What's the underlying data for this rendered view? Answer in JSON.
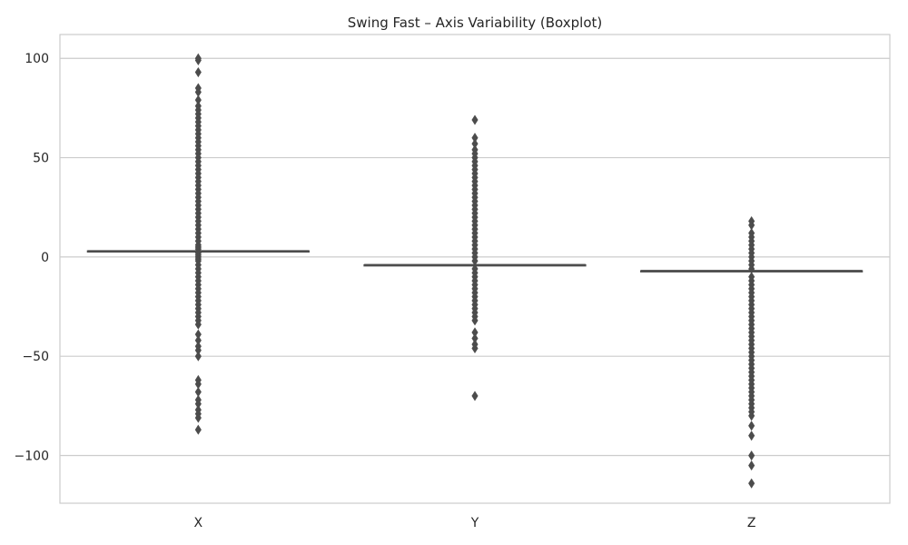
{
  "chart_data": {
    "type": "boxplot",
    "title": "Swing Fast – Axis Variability (Boxplot)",
    "xlabel": "",
    "ylabel": "",
    "categories": [
      "X",
      "Y",
      "Z"
    ],
    "ylim": [
      -124,
      112
    ],
    "yticks": [
      100,
      50,
      0,
      -50,
      -100
    ],
    "ytick_labels": [
      "100",
      "50",
      "0",
      "−50",
      "−100"
    ],
    "grid": "horizontal",
    "box_color": "#4c4c4c",
    "grid_color": "#cccccc",
    "series": [
      {
        "category": "X",
        "median": 3,
        "q1": 3,
        "q3": 3,
        "whisker_low": 3,
        "whisker_high": 3,
        "outliers": [
          100,
          99,
          93,
          85,
          83,
          79,
          76,
          74,
          72,
          70,
          68,
          66,
          64,
          62,
          60,
          58,
          56,
          54,
          52,
          50,
          48,
          46,
          44,
          42,
          40,
          38,
          36,
          34,
          32,
          30,
          28,
          26,
          24,
          22,
          20,
          18,
          16,
          14,
          12,
          10,
          8,
          6,
          5,
          4,
          2,
          1,
          0,
          -1,
          -2,
          -4,
          -6,
          -8,
          -10,
          -12,
          -14,
          -16,
          -18,
          -20,
          -22,
          -24,
          -26,
          -28,
          -30,
          -32,
          -34,
          -39,
          -42,
          -45,
          -47,
          -50,
          -62,
          -64,
          -68,
          -72,
          -74,
          -77,
          -79,
          -81,
          -87
        ]
      },
      {
        "category": "Y",
        "median": -4,
        "q1": -4,
        "q3": -4,
        "whisker_low": -4,
        "whisker_high": -4,
        "outliers": [
          69,
          60,
          57,
          54,
          52,
          50,
          48,
          46,
          44,
          42,
          40,
          38,
          36,
          34,
          32,
          30,
          28,
          26,
          24,
          22,
          20,
          18,
          16,
          14,
          12,
          10,
          8,
          6,
          4,
          2,
          0,
          -2,
          -6,
          -8,
          -10,
          -12,
          -14,
          -16,
          -18,
          -20,
          -22,
          -24,
          -26,
          -28,
          -30,
          -32,
          -38,
          -41,
          -44,
          -46,
          -70
        ]
      },
      {
        "category": "Z",
        "median": -7,
        "q1": -7,
        "q3": -7,
        "whisker_low": -7,
        "whisker_high": -7,
        "outliers": [
          18,
          16,
          12,
          10,
          8,
          6,
          4,
          2,
          0,
          -2,
          -4,
          -6,
          -10,
          -12,
          -14,
          -16,
          -18,
          -20,
          -22,
          -24,
          -26,
          -28,
          -30,
          -32,
          -34,
          -36,
          -38,
          -40,
          -42,
          -44,
          -46,
          -48,
          -50,
          -52,
          -54,
          -56,
          -58,
          -60,
          -62,
          -64,
          -66,
          -68,
          -70,
          -72,
          -74,
          -76,
          -78,
          -80,
          -85,
          -90,
          -100,
          -105,
          -114
        ]
      }
    ]
  }
}
